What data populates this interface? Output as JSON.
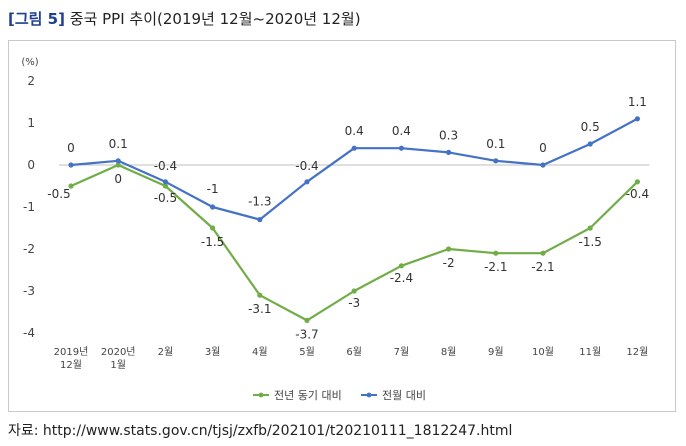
{
  "title": {
    "tag": "[그림 5]",
    "text": "중국 PPI 추이(2019년 12월~2020년 12월)"
  },
  "source": "자료: http://www.stats.gov.cn/tjsj/zxfb/202101/t20210111_1812247.html",
  "chart_data": {
    "type": "line",
    "unit_label": "(%)",
    "ylim": [
      -4,
      2
    ],
    "yticks": [
      "2",
      "1",
      "0",
      "-1",
      "-2",
      "-3",
      "-4"
    ],
    "categories": [
      [
        "2019년",
        "12월"
      ],
      [
        "2020년",
        "1월"
      ],
      [
        "2월"
      ],
      [
        "3월"
      ],
      [
        "4월"
      ],
      [
        "5월"
      ],
      [
        "6월"
      ],
      [
        "7월"
      ],
      [
        "8월"
      ],
      [
        "9월"
      ],
      [
        "10월"
      ],
      [
        "11월"
      ],
      [
        "12월"
      ]
    ],
    "series": [
      {
        "name": "전년 동기 대비",
        "color": "#70ad47",
        "values": [
          -0.5,
          0,
          -0.5,
          -1.5,
          -3.1,
          -3.7,
          -3,
          -2.4,
          -2,
          -2.1,
          -2.1,
          -1.5,
          -0.4
        ],
        "labels": [
          "-0.5",
          "0",
          "-0.5",
          "-1.5",
          "-3.1",
          "-3.7",
          "-3",
          "-2.4",
          "-2",
          "-2.1",
          "-2.1",
          "-1.5",
          "-0.4"
        ]
      },
      {
        "name": "전월 대비",
        "color": "#4472c4",
        "values": [
          0,
          0.1,
          -0.4,
          -1,
          -1.3,
          -0.4,
          0.4,
          0.4,
          0.3,
          0.1,
          0,
          0.5,
          1.1
        ],
        "labels": [
          "0",
          "0.1",
          "-0.4",
          "-1",
          "-1.3",
          "-0.4",
          "0.4",
          "0.4",
          "0.3",
          "0.1",
          "0",
          "0.5",
          "1.1"
        ]
      }
    ],
    "legend_position": "bottom",
    "grid": false
  }
}
